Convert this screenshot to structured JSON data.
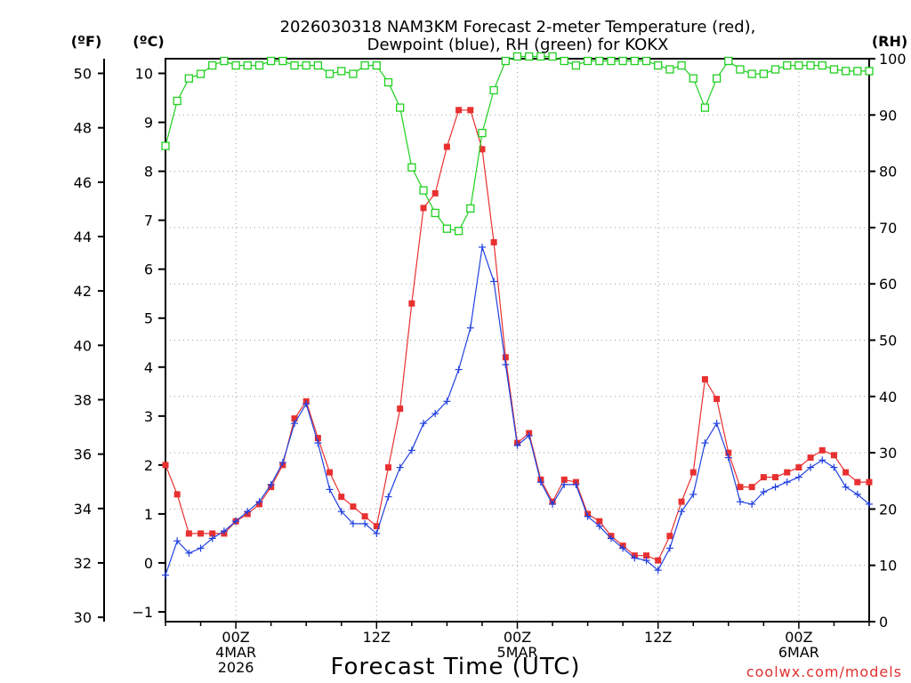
{
  "chart_data": {
    "type": "line",
    "title": "2026030318 NAM3KM Forecast 2-meter Temperature (red),",
    "subtitle": "Dewpoint (blue), RH (green) for KOKX",
    "xlabel": "Forecast Time (UTC)",
    "watermark": "coolwx.com/models",
    "x_unit": "hours since 2026-03-03 18Z",
    "xlim": [
      0,
      60
    ],
    "grid": true,
    "x_ticks": [
      {
        "hour": 6,
        "lines": [
          "00Z",
          "4MAR",
          "2026"
        ]
      },
      {
        "hour": 18,
        "lines": [
          "12Z"
        ]
      },
      {
        "hour": 30,
        "lines": [
          "00Z",
          "5MAR"
        ]
      },
      {
        "hour": 42,
        "lines": [
          "12Z"
        ]
      },
      {
        "hour": 54,
        "lines": [
          "00Z",
          "6MAR"
        ]
      }
    ],
    "y_axes": {
      "left_outer": {
        "label": "(ºF)",
        "ticks": [
          "30",
          "32",
          "34",
          "36",
          "38",
          "40",
          "42",
          "44",
          "46",
          "48",
          "50"
        ]
      },
      "left_inner": {
        "label": "(ºC)",
        "ylim": [
          -1.2,
          10.3
        ],
        "ticks": [
          "−1",
          "0",
          "1",
          "2",
          "3",
          "4",
          "5",
          "6",
          "7",
          "8",
          "9",
          "10"
        ]
      },
      "right": {
        "label": "(RH)",
        "ylim": [
          0,
          100
        ],
        "ticks": [
          "0",
          "10",
          "20",
          "30",
          "40",
          "50",
          "60",
          "70",
          "80",
          "90",
          "100"
        ]
      }
    },
    "series": [
      {
        "name": "Temperature",
        "unit": "C",
        "axis": "left_inner",
        "color": "#e83030",
        "marker": "filled-square",
        "x": [
          0,
          1,
          2,
          3,
          4,
          5,
          6,
          7,
          8,
          9,
          10,
          11,
          12,
          13,
          14,
          15,
          16,
          17,
          18,
          19,
          20,
          21,
          22,
          23,
          24,
          25,
          26,
          27,
          28,
          29,
          30,
          31,
          32,
          33,
          34,
          35,
          36,
          37,
          38,
          39,
          40,
          41,
          42,
          43,
          44,
          45,
          46,
          47,
          48,
          49,
          50,
          51,
          52,
          53,
          54,
          55,
          56,
          57,
          58,
          59,
          60
        ],
        "values": [
          2.0,
          1.4,
          0.6,
          0.6,
          0.6,
          0.6,
          0.85,
          1.0,
          1.2,
          1.55,
          2.0,
          2.95,
          3.3,
          2.55,
          1.85,
          1.35,
          1.15,
          0.95,
          0.75,
          1.95,
          3.15,
          5.3,
          7.25,
          7.55,
          8.5,
          9.25,
          9.25,
          8.45,
          6.55,
          4.2,
          2.45,
          2.65,
          1.7,
          1.25,
          1.7,
          1.65,
          1.0,
          0.85,
          0.55,
          0.35,
          0.15,
          0.15,
          0.05,
          0.55,
          1.25,
          1.85,
          3.75,
          3.35,
          2.25,
          1.55,
          1.55,
          1.75,
          1.75,
          1.85,
          1.95,
          2.15,
          2.3,
          2.2,
          1.85,
          1.65,
          1.65
        ]
      },
      {
        "name": "Dewpoint",
        "unit": "C",
        "axis": "left_inner",
        "color": "#2040e0",
        "marker": "plus",
        "x": [
          0,
          1,
          2,
          3,
          4,
          5,
          6,
          7,
          8,
          9,
          10,
          11,
          12,
          13,
          14,
          15,
          16,
          17,
          18,
          19,
          20,
          21,
          22,
          23,
          24,
          25,
          26,
          27,
          28,
          29,
          30,
          31,
          32,
          33,
          34,
          35,
          36,
          37,
          38,
          39,
          40,
          41,
          42,
          43,
          44,
          45,
          46,
          47,
          48,
          49,
          50,
          51,
          52,
          53,
          54,
          55,
          56,
          57,
          58,
          59,
          60
        ],
        "values": [
          -0.25,
          0.45,
          0.2,
          0.3,
          0.5,
          0.65,
          0.85,
          1.05,
          1.25,
          1.6,
          2.05,
          2.85,
          3.25,
          2.45,
          1.5,
          1.05,
          0.8,
          0.8,
          0.6,
          1.35,
          1.95,
          2.3,
          2.85,
          3.05,
          3.3,
          3.95,
          4.8,
          6.45,
          5.75,
          4.05,
          2.4,
          2.6,
          1.65,
          1.2,
          1.6,
          1.6,
          0.95,
          0.75,
          0.5,
          0.3,
          0.1,
          0.05,
          -0.15,
          0.3,
          1.05,
          1.4,
          2.45,
          2.85,
          2.15,
          1.25,
          1.2,
          1.45,
          1.55,
          1.65,
          1.75,
          1.95,
          2.1,
          1.95,
          1.55,
          1.4,
          1.2
        ]
      },
      {
        "name": "Relative Humidity",
        "unit": "%",
        "axis": "right",
        "color": "#20d020",
        "marker": "open-square",
        "x": [
          0,
          1,
          2,
          3,
          4,
          5,
          6,
          7,
          8,
          9,
          10,
          11,
          12,
          13,
          14,
          15,
          16,
          17,
          18,
          19,
          20,
          21,
          22,
          23,
          24,
          25,
          26,
          27,
          28,
          29,
          30,
          31,
          32,
          33,
          34,
          35,
          36,
          37,
          38,
          39,
          40,
          41,
          42,
          43,
          44,
          45,
          46,
          47,
          48,
          49,
          50,
          51,
          52,
          53,
          54,
          55,
          56,
          57,
          58,
          59,
          60
        ],
        "values": [
          84.5,
          92.5,
          96.5,
          97.3,
          98.8,
          99.6,
          98.8,
          98.8,
          98.8,
          99.6,
          99.6,
          98.8,
          98.8,
          98.8,
          97.3,
          97.8,
          97.3,
          98.8,
          98.8,
          95.8,
          91.3,
          80.7,
          76.6,
          72.6,
          69.8,
          69.4,
          73.4,
          86.8,
          94.4,
          99.6,
          100.4,
          100.4,
          100.4,
          100.4,
          99.6,
          98.8,
          99.6,
          99.6,
          99.6,
          99.6,
          99.6,
          99.6,
          98.8,
          98.1,
          98.8,
          96.5,
          91.3,
          96.5,
          99.6,
          98.1,
          97.3,
          97.3,
          98.1,
          98.8,
          98.8,
          98.8,
          98.8,
          98.1,
          97.8,
          97.8,
          97.8
        ]
      }
    ]
  }
}
